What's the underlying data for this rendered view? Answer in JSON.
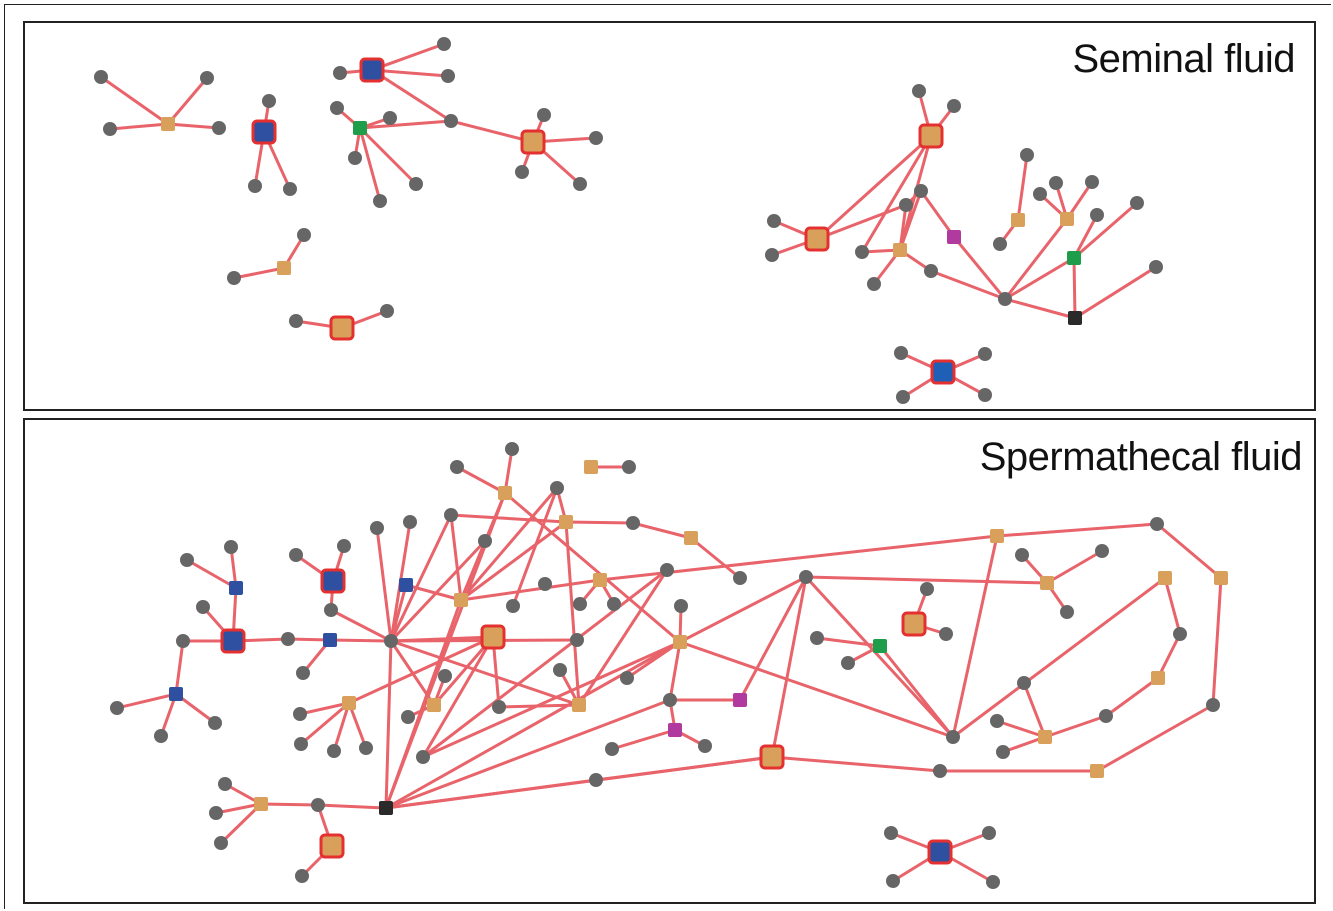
{
  "colors": {
    "edge": "#e8636a",
    "node_gray": "#666666",
    "node_tan": "#d9a05b",
    "node_blue": "#2f4fa0",
    "node_blue_bright": "#1f5fb5",
    "node_green": "#1e9e4a",
    "node_magenta": "#b03a9e",
    "node_dark": "#2a2a2a",
    "highlight_border": "#e53030"
  },
  "panels": [
    {
      "id": "seminal",
      "title": "Seminal fluid"
    },
    {
      "id": "spermathecal",
      "title": "Spermathecal fluid"
    }
  ]
}
